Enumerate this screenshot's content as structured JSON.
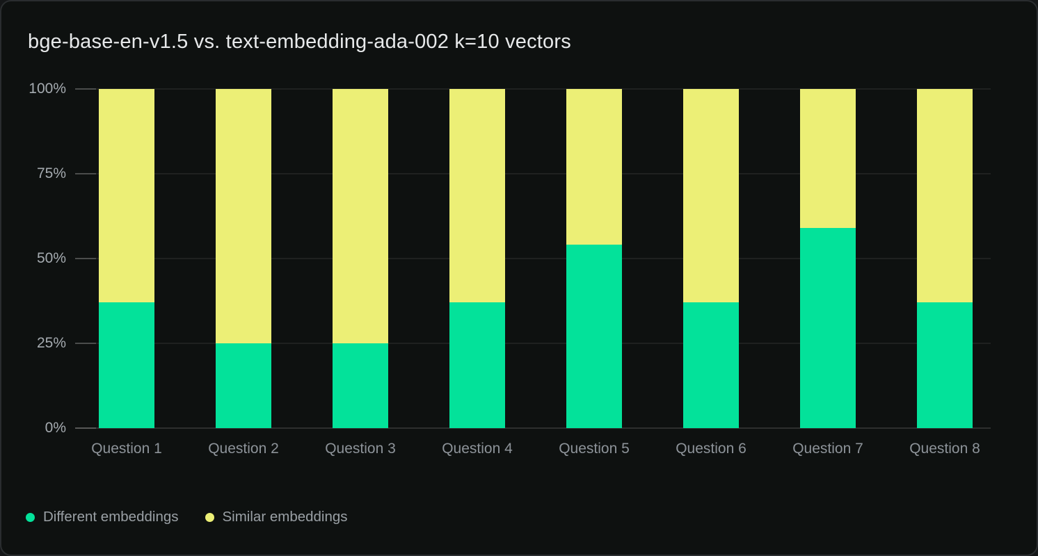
{
  "theme": {
    "page_background": "#151718",
    "card_background": "#0E1110",
    "card_border": "#2A2D2F",
    "grid_color": "rgba(255,255,255,0.07)",
    "axis_text_color": "#A5ABB0",
    "category_text_color": "#8D9399",
    "title_color": "#E7E9EA"
  },
  "chart_data": {
    "type": "bar",
    "variant": "stacked-normalized-vertical",
    "title": "bge-base-en-v1.5 vs. text-embedding-ada-002 k=10 vectors",
    "categories": [
      "Question 1",
      "Question 2",
      "Question 3",
      "Question 4",
      "Question 5",
      "Question 6",
      "Question 7",
      "Question 8"
    ],
    "series": [
      {
        "name": "Different embeddings",
        "color": "#03E29A",
        "unit": "%",
        "values": [
          37,
          25,
          25,
          37,
          54,
          37,
          59,
          37
        ]
      },
      {
        "name": "Similar embeddings",
        "color": "#ECEF76",
        "unit": "%",
        "values": [
          63,
          75,
          75,
          63,
          46,
          63,
          41,
          63
        ]
      }
    ],
    "stack_order_bottom_to_top": [
      "Different embeddings",
      "Similar embeddings"
    ],
    "xlabel": "",
    "ylabel": "",
    "y_axis": {
      "min": 0,
      "max": 100,
      "ticks": [
        "0%",
        "25%",
        "50%",
        "75%",
        "100%"
      ],
      "tick_values": [
        0,
        25,
        50,
        75,
        100
      ]
    },
    "grid": true,
    "legend_position": "bottom-left"
  }
}
